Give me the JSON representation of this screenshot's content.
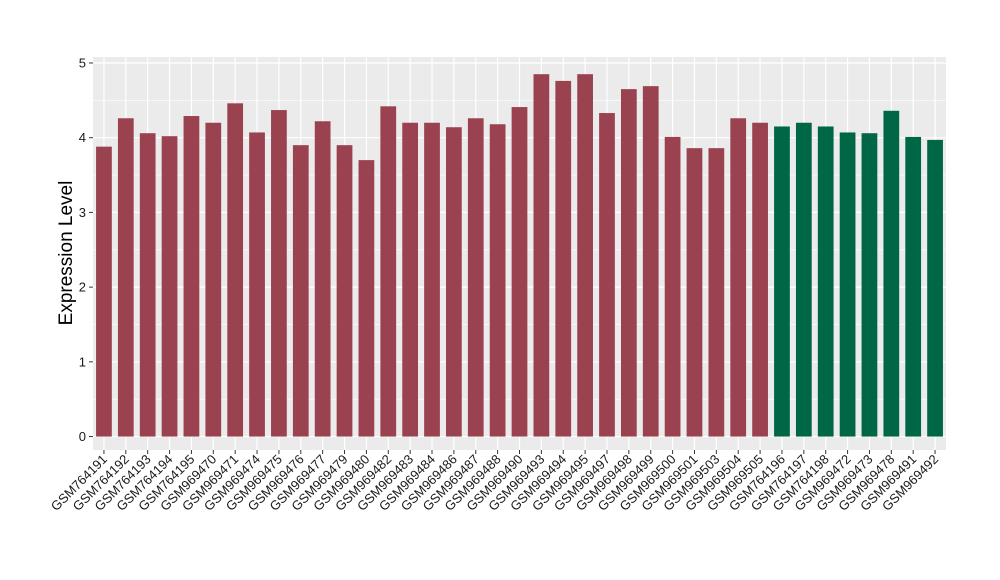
{
  "chart_data": {
    "type": "bar",
    "title": "",
    "xlabel": "",
    "ylabel": "Expression Level",
    "ylim": [
      -0.18,
      5.08
    ],
    "yticks": [
      0,
      1,
      2,
      3,
      4,
      5
    ],
    "grid": true,
    "legend": "none",
    "colors": {
      "group1": "#9b4250",
      "group2": "#006746",
      "panel": "#ebebeb",
      "gridline": "#ffffff"
    },
    "categories": [
      "GSM764191",
      "GSM764192",
      "GSM764193",
      "GSM764194",
      "GSM764195",
      "GSM969470",
      "GSM969471",
      "GSM969474",
      "GSM969475",
      "GSM969476",
      "GSM969477",
      "GSM969479",
      "GSM969480",
      "GSM969482",
      "GSM969483",
      "GSM969484",
      "GSM969486",
      "GSM969487",
      "GSM969488",
      "GSM969490",
      "GSM969493",
      "GSM969494",
      "GSM969495",
      "GSM969497",
      "GSM969498",
      "GSM969499",
      "GSM969500",
      "GSM969501",
      "GSM969503",
      "GSM969504",
      "GSM969505",
      "GSM764196",
      "GSM764197",
      "GSM764198",
      "GSM969472",
      "GSM969473",
      "GSM969478",
      "GSM969491",
      "GSM969492"
    ],
    "values": [
      3.88,
      4.26,
      4.06,
      4.02,
      4.29,
      4.2,
      4.46,
      4.07,
      4.37,
      3.9,
      4.22,
      3.9,
      3.7,
      4.42,
      4.2,
      4.2,
      4.14,
      4.26,
      4.18,
      4.41,
      4.85,
      4.76,
      4.85,
      4.33,
      4.65,
      4.69,
      4.01,
      3.86,
      3.86,
      4.26,
      4.2,
      4.15,
      4.2,
      4.15,
      4.07,
      4.06,
      4.36,
      4.01,
      3.97
    ],
    "groups": [
      1,
      1,
      1,
      1,
      1,
      1,
      1,
      1,
      1,
      1,
      1,
      1,
      1,
      1,
      1,
      1,
      1,
      1,
      1,
      1,
      1,
      1,
      1,
      1,
      1,
      1,
      1,
      1,
      1,
      1,
      1,
      2,
      2,
      2,
      2,
      2,
      2,
      2,
      2
    ]
  }
}
